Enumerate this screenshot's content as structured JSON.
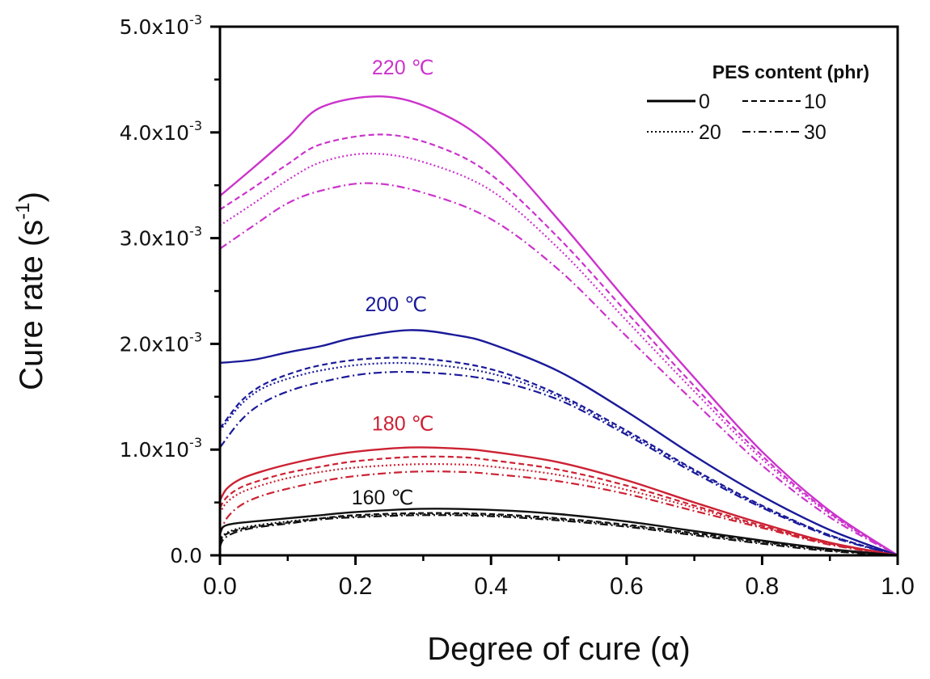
{
  "chart_data": {
    "type": "line",
    "title": "",
    "xlabel": "Degree of cure (α)",
    "ylabel": "Cure rate (s",
    "ylabel_sup": "-1",
    "ylabel_close": ")",
    "xlim": [
      0.0,
      1.0
    ],
    "ylim": [
      0.0,
      0.005
    ],
    "grid": false,
    "x_ticks": [
      {
        "value": 0.0,
        "label": "0.0"
      },
      {
        "value": 0.2,
        "label": "0.2"
      },
      {
        "value": 0.4,
        "label": "0.4"
      },
      {
        "value": 0.6,
        "label": "0.6"
      },
      {
        "value": 0.8,
        "label": "0.8"
      },
      {
        "value": 1.0,
        "label": "1.0"
      }
    ],
    "x_minor_ticks": [
      0.1,
      0.3,
      0.5,
      0.7,
      0.9
    ],
    "y_ticks": [
      {
        "value": 0.0,
        "label": "0.0",
        "sup": ""
      },
      {
        "value": 0.001,
        "label": "1.0x10",
        "sup": "-3"
      },
      {
        "value": 0.002,
        "label": "2.0x10",
        "sup": "-3"
      },
      {
        "value": 0.003,
        "label": "3.0x10",
        "sup": "-3"
      },
      {
        "value": 0.004,
        "label": "4.0x10",
        "sup": "-3"
      },
      {
        "value": 0.005,
        "label": "5.0x10",
        "sup": "-3"
      }
    ],
    "y_minor_ticks": [
      0.0005,
      0.0015,
      0.0025,
      0.0035,
      0.0045
    ],
    "legend": {
      "title": "PES content (phr)",
      "position": "top-right",
      "entries": [
        {
          "label": "0",
          "style": "solid"
        },
        {
          "label": "10",
          "style": "dashed"
        },
        {
          "label": "20",
          "style": "dotted"
        },
        {
          "label": "30",
          "style": "dashdot"
        }
      ]
    },
    "annotations": [
      {
        "text": "220 ℃",
        "group": "220",
        "x": 0.27,
        "y": 0.00455
      },
      {
        "text": "200 ℃",
        "group": "200",
        "x": 0.26,
        "y": 0.00231
      },
      {
        "text": "180 ℃",
        "group": "180",
        "x": 0.27,
        "y": 0.00118
      },
      {
        "text": "160 ℃",
        "group": "160",
        "x": 0.24,
        "y": 0.00048
      }
    ],
    "groups": [
      {
        "temperature": "220",
        "color": "#cc33cc"
      },
      {
        "temperature": "200",
        "color": "#1a1a99"
      },
      {
        "temperature": "180",
        "color": "#cc2233"
      },
      {
        "temperature": "160",
        "color": "#111111"
      }
    ],
    "series": [
      {
        "name": "220 ℃, 0 phr",
        "group": "220",
        "pes": "0",
        "style": "solid",
        "x": [
          0.0,
          0.05,
          0.1,
          0.15,
          0.24,
          0.32,
          0.4,
          0.5,
          0.6,
          0.7,
          0.8,
          0.9,
          1.0
        ],
        "y": [
          0.0034,
          0.00367,
          0.00395,
          0.00424,
          0.00434,
          0.0042,
          0.00387,
          0.00317,
          0.00241,
          0.00168,
          0.00098,
          0.00042,
          0.0
        ]
      },
      {
        "name": "220 ℃, 10 phr",
        "group": "220",
        "pes": "10",
        "style": "dashed",
        "x": [
          0.0,
          0.05,
          0.1,
          0.15,
          0.24,
          0.32,
          0.4,
          0.5,
          0.6,
          0.7,
          0.8,
          0.9,
          1.0
        ],
        "y": [
          0.00327,
          0.00348,
          0.0037,
          0.00389,
          0.00398,
          0.00387,
          0.0036,
          0.003,
          0.0023,
          0.0016,
          0.00094,
          0.0004,
          0.0
        ]
      },
      {
        "name": "220 ℃, 20 phr",
        "group": "220",
        "pes": "20",
        "style": "dotted",
        "x": [
          0.0,
          0.05,
          0.1,
          0.15,
          0.22,
          0.3,
          0.4,
          0.5,
          0.6,
          0.7,
          0.8,
          0.9,
          1.0
        ],
        "y": [
          0.00312,
          0.00333,
          0.00355,
          0.00372,
          0.0038,
          0.00372,
          0.00345,
          0.0029,
          0.00222,
          0.00155,
          0.00091,
          0.00039,
          0.0
        ]
      },
      {
        "name": "220 ℃, 30 phr",
        "group": "220",
        "pes": "30",
        "style": "dashdot",
        "x": [
          0.0,
          0.05,
          0.1,
          0.15,
          0.22,
          0.3,
          0.4,
          0.5,
          0.6,
          0.7,
          0.8,
          0.9,
          1.0
        ],
        "y": [
          0.0029,
          0.00312,
          0.00333,
          0.00345,
          0.00352,
          0.00343,
          0.00318,
          0.0027,
          0.00207,
          0.00145,
          0.00085,
          0.00036,
          0.0
        ]
      },
      {
        "name": "200 ℃, 0 phr",
        "group": "200",
        "pes": "0",
        "style": "solid",
        "x": [
          0.0,
          0.05,
          0.1,
          0.15,
          0.2,
          0.28,
          0.35,
          0.4,
          0.5,
          0.6,
          0.7,
          0.8,
          0.9,
          1.0
        ],
        "y": [
          0.00182,
          0.00185,
          0.00192,
          0.00198,
          0.00206,
          0.00213,
          0.00208,
          0.002,
          0.00174,
          0.00136,
          0.00094,
          0.00056,
          0.00024,
          0.0
        ]
      },
      {
        "name": "200 ℃, 10 phr",
        "group": "200",
        "pes": "10",
        "style": "dashed",
        "x": [
          0.0,
          0.03,
          0.06,
          0.1,
          0.15,
          0.22,
          0.3,
          0.4,
          0.5,
          0.6,
          0.7,
          0.8,
          0.9,
          1.0
        ],
        "y": [
          0.0012,
          0.00145,
          0.0016,
          0.00171,
          0.0018,
          0.00186,
          0.00186,
          0.00176,
          0.00152,
          0.00118,
          0.00081,
          0.00047,
          0.00019,
          0.0
        ]
      },
      {
        "name": "200 ℃, 20 phr",
        "group": "200",
        "pes": "20",
        "style": "dotted",
        "x": [
          0.0,
          0.03,
          0.06,
          0.1,
          0.15,
          0.22,
          0.3,
          0.4,
          0.5,
          0.6,
          0.7,
          0.8,
          0.9,
          1.0
        ],
        "y": [
          0.00118,
          0.00142,
          0.00157,
          0.00167,
          0.00175,
          0.00181,
          0.00181,
          0.00172,
          0.0015,
          0.00116,
          0.0008,
          0.00046,
          0.00019,
          0.0
        ]
      },
      {
        "name": "200 ℃, 30 phr",
        "group": "200",
        "pes": "30",
        "style": "dashdot",
        "x": [
          0.0,
          0.03,
          0.06,
          0.1,
          0.15,
          0.22,
          0.3,
          0.4,
          0.5,
          0.6,
          0.7,
          0.8,
          0.9,
          1.0
        ],
        "y": [
          0.00102,
          0.00127,
          0.00143,
          0.00155,
          0.00164,
          0.00172,
          0.00173,
          0.00166,
          0.00147,
          0.00114,
          0.00078,
          0.00045,
          0.00018,
          0.0
        ]
      },
      {
        "name": "180 ℃, 0 phr",
        "group": "180",
        "pes": "0",
        "style": "solid",
        "x": [
          0.0,
          0.01,
          0.03,
          0.06,
          0.1,
          0.15,
          0.2,
          0.28,
          0.35,
          0.4,
          0.5,
          0.6,
          0.7,
          0.8,
          0.9,
          1.0
        ],
        "y": [
          0.00052,
          0.00063,
          0.00072,
          0.00079,
          0.00086,
          0.00093,
          0.00098,
          0.00102,
          0.00101,
          0.00098,
          0.00088,
          0.00071,
          0.0005,
          0.0003,
          0.00012,
          0.0
        ]
      },
      {
        "name": "180 ℃, 10 phr",
        "group": "180",
        "pes": "10",
        "style": "dashed",
        "x": [
          0.0,
          0.01,
          0.03,
          0.06,
          0.1,
          0.15,
          0.2,
          0.28,
          0.35,
          0.4,
          0.5,
          0.6,
          0.7,
          0.8,
          0.9,
          1.0
        ],
        "y": [
          0.00045,
          0.00055,
          0.00064,
          0.00071,
          0.00078,
          0.00084,
          0.00089,
          0.00093,
          0.00093,
          0.0009,
          0.00081,
          0.00066,
          0.00047,
          0.00028,
          0.00011,
          0.0
        ]
      },
      {
        "name": "180 ℃, 20 phr",
        "group": "180",
        "pes": "20",
        "style": "dotted",
        "x": [
          0.0,
          0.01,
          0.03,
          0.06,
          0.1,
          0.15,
          0.2,
          0.28,
          0.35,
          0.4,
          0.5,
          0.6,
          0.7,
          0.8,
          0.9,
          1.0
        ],
        "y": [
          0.0004,
          0.0005,
          0.00059,
          0.00066,
          0.00073,
          0.00079,
          0.00083,
          0.00086,
          0.00086,
          0.00084,
          0.00076,
          0.00062,
          0.00045,
          0.00027,
          0.00011,
          0.0
        ]
      },
      {
        "name": "180 ℃, 30 phr",
        "group": "180",
        "pes": "30",
        "style": "dashdot",
        "x": [
          0.0,
          0.01,
          0.03,
          0.06,
          0.1,
          0.15,
          0.2,
          0.28,
          0.35,
          0.4,
          0.5,
          0.6,
          0.7,
          0.8,
          0.9,
          1.0
        ],
        "y": [
          0.0002,
          0.00035,
          0.00047,
          0.00056,
          0.00063,
          0.0007,
          0.00075,
          0.00079,
          0.00079,
          0.00077,
          0.0007,
          0.00058,
          0.00042,
          0.00026,
          0.0001,
          0.0
        ]
      },
      {
        "name": "160 ℃, 0 phr",
        "group": "160",
        "pes": "0",
        "style": "solid",
        "x": [
          0.0,
          0.005,
          0.02,
          0.05,
          0.1,
          0.15,
          0.2,
          0.3,
          0.4,
          0.5,
          0.6,
          0.7,
          0.8,
          0.9,
          1.0
        ],
        "y": [
          0.0002,
          0.00027,
          0.0003,
          0.00032,
          0.00035,
          0.00038,
          0.00041,
          0.00044,
          0.00043,
          0.00039,
          0.00032,
          0.00023,
          0.00014,
          6e-05,
          0.0
        ]
      },
      {
        "name": "160 ℃, 10 phr",
        "group": "160",
        "pes": "10",
        "style": "dashed",
        "x": [
          0.0,
          0.005,
          0.02,
          0.05,
          0.1,
          0.15,
          0.2,
          0.3,
          0.4,
          0.5,
          0.6,
          0.7,
          0.8,
          0.9,
          1.0
        ],
        "y": [
          0.00012,
          0.00018,
          0.00023,
          0.00027,
          0.00031,
          0.00035,
          0.00038,
          0.0004,
          0.00039,
          0.00035,
          0.00029,
          0.00021,
          0.00013,
          5e-05,
          0.0
        ]
      },
      {
        "name": "160 ℃, 20 phr",
        "group": "160",
        "pes": "20",
        "style": "dotted",
        "x": [
          0.0,
          0.005,
          0.02,
          0.05,
          0.1,
          0.15,
          0.2,
          0.3,
          0.4,
          0.5,
          0.6,
          0.7,
          0.8,
          0.9,
          1.0
        ],
        "y": [
          0.00013,
          0.00019,
          0.00024,
          0.00028,
          0.00032,
          0.00035,
          0.00037,
          0.00039,
          0.00038,
          0.00034,
          0.00028,
          0.0002,
          0.00012,
          5e-05,
          0.0
        ]
      },
      {
        "name": "160 ℃, 30 phr",
        "group": "160",
        "pes": "30",
        "style": "dashdot",
        "x": [
          0.0,
          0.005,
          0.02,
          0.05,
          0.1,
          0.15,
          0.2,
          0.3,
          0.4,
          0.5,
          0.6,
          0.7,
          0.8,
          0.9,
          1.0
        ],
        "y": [
          8e-05,
          0.00015,
          0.00021,
          0.00026,
          0.0003,
          0.00034,
          0.00036,
          0.00038,
          0.00037,
          0.00033,
          0.00027,
          0.00019,
          0.00011,
          4e-05,
          0.0
        ]
      }
    ]
  }
}
